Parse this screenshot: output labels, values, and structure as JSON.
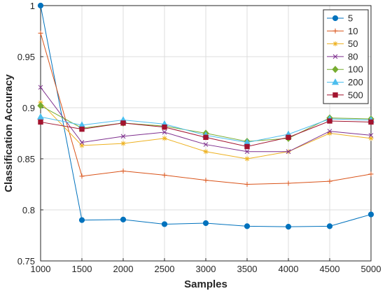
{
  "chart_data": {
    "type": "line",
    "title": "",
    "xlabel": "Samples",
    "ylabel": "Classification Accuracy",
    "xlim": [
      1000,
      5000
    ],
    "ylim": [
      0.75,
      1.0
    ],
    "xticks": [
      1000,
      1500,
      2000,
      2500,
      3000,
      3500,
      4000,
      4500,
      5000
    ],
    "yticks": [
      0.75,
      0.8,
      0.85,
      0.9,
      0.95,
      1.0
    ],
    "ytick_labels": [
      "0.75",
      "0.8",
      "0.85",
      "0.9",
      "0.95",
      "1"
    ],
    "grid": true,
    "legend_position": "top-right",
    "x": [
      1000,
      1500,
      2000,
      2500,
      3000,
      3500,
      4000,
      4500,
      5000
    ],
    "series": [
      {
        "name": "5",
        "color": "#0072BD",
        "marker": "circle",
        "values": [
          1.0,
          0.79,
          0.7905,
          0.786,
          0.787,
          0.784,
          0.7835,
          0.784,
          0.7955
        ]
      },
      {
        "name": "10",
        "color": "#D95319",
        "marker": "plus",
        "values": [
          0.973,
          0.833,
          0.838,
          0.834,
          0.829,
          0.825,
          0.826,
          0.828,
          0.835
        ]
      },
      {
        "name": "50",
        "color": "#EDB120",
        "marker": "asterisk",
        "values": [
          0.905,
          0.863,
          0.865,
          0.87,
          0.857,
          0.85,
          0.857,
          0.875,
          0.87
        ]
      },
      {
        "name": "80",
        "color": "#7E2F8E",
        "marker": "cross",
        "values": [
          0.92,
          0.866,
          0.872,
          0.876,
          0.864,
          0.857,
          0.857,
          0.877,
          0.873
        ]
      },
      {
        "name": "100",
        "color": "#77AC30",
        "marker": "diamond",
        "values": [
          0.902,
          0.88,
          0.885,
          0.882,
          0.875,
          0.867,
          0.87,
          0.89,
          0.889
        ]
      },
      {
        "name": "200",
        "color": "#4DBEEE",
        "marker": "triangle",
        "values": [
          0.891,
          0.883,
          0.888,
          0.884,
          0.873,
          0.866,
          0.874,
          0.889,
          0.888
        ]
      },
      {
        "name": "500",
        "color": "#A2142F",
        "marker": "square",
        "values": [
          0.886,
          0.879,
          0.885,
          0.881,
          0.871,
          0.862,
          0.871,
          0.887,
          0.886
        ]
      }
    ]
  }
}
